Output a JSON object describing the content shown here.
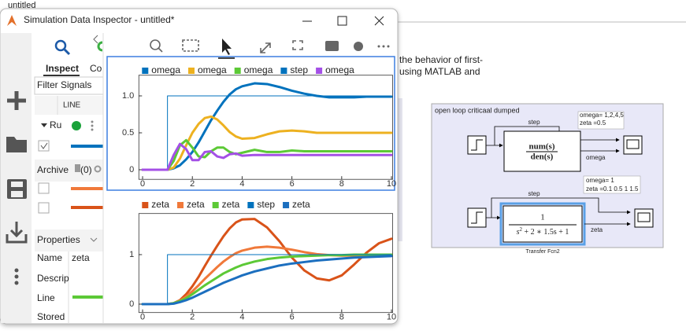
{
  "background": {
    "title": "untitled",
    "lines": [
      "the behavior of first-",
      "using MATLAB and"
    ],
    "model": {
      "area_label": "open loop criticaal dumped",
      "top": {
        "note": [
          "omega= 1,2,4,5",
          "zeta =0.5"
        ],
        "step_label": "step",
        "numerator": "num(s)",
        "denominator": "den(s)",
        "output_label": "omega"
      },
      "bottom": {
        "note": [
          "omega= 1",
          "zeta =0.1 0.5 1 1.5"
        ],
        "step_label": "step",
        "numerator": "1",
        "denominator": [
          "s",
          "2",
          " + 2 ∗ 1.5s + 1"
        ],
        "output_label": "zeta",
        "block_name": "Transfer Fcn2"
      }
    }
  },
  "window": {
    "title": "Simulation Data Inspector - untitled*",
    "tabs": [
      "Inspect",
      "Co"
    ],
    "filter_placeholder": "Filter Signals",
    "column": "LINE",
    "run": "Ru",
    "archive": "Archive",
    "archive_count": "(0)",
    "properties": "Properties",
    "property_names": [
      "Name",
      "Descrip",
      "Line",
      "Stored"
    ],
    "name_value": "zeta"
  },
  "chart_data": [
    {
      "type": "line",
      "x": [
        0,
        1,
        1.25,
        1.5,
        1.75,
        2,
        2.25,
        2.5,
        2.75,
        3,
        3.25,
        3.5,
        3.75,
        4,
        4.5,
        5,
        5.5,
        6,
        6.5,
        7,
        7.5,
        8,
        8.5,
        9,
        9.5,
        10
      ],
      "xlim": [
        -0.15,
        10.05
      ],
      "xticks": [
        0,
        2,
        4,
        6,
        8,
        10
      ],
      "ylim": [
        -0.13,
        1.28
      ],
      "yticks": [
        0,
        0.5,
        {
          "value": 1,
          "label": "1.0"
        }
      ],
      "series": [
        {
          "name": "omega",
          "color": "#0072bd",
          "width": 3,
          "values": [
            0,
            0,
            0.02,
            0.06,
            0.14,
            0.24,
            0.37,
            0.52,
            0.67,
            0.8,
            0.92,
            1.02,
            1.09,
            1.13,
            1.17,
            1.16,
            1.12,
            1.07,
            1.03,
            1.0,
            0.98,
            0.98,
            0.98,
            0.99,
            0.99,
            0.99
          ]
        },
        {
          "name": "omega",
          "color": "#edb120",
          "width": 3,
          "values": [
            0,
            0,
            0.03,
            0.15,
            0.33,
            0.5,
            0.62,
            0.7,
            0.72,
            0.68,
            0.6,
            0.51,
            0.45,
            0.42,
            0.43,
            0.48,
            0.52,
            0.53,
            0.52,
            0.5,
            0.5,
            0.5,
            0.5,
            0.5,
            0.5,
            0.5
          ]
        },
        {
          "name": "omega",
          "color": "#5cc936",
          "width": 3,
          "values": [
            0,
            0,
            0.12,
            0.33,
            0.4,
            0.3,
            0.18,
            0.17,
            0.25,
            0.3,
            0.3,
            0.24,
            0.21,
            0.23,
            0.27,
            0.24,
            0.24,
            0.26,
            0.25,
            0.25,
            0.25,
            0.25,
            0.25,
            0.25,
            0.25,
            0.25
          ]
        },
        {
          "name": "step",
          "color": "#0072bd",
          "width": 1,
          "x": [
            0,
            1,
            1,
            10
          ],
          "values": [
            0,
            0,
            1,
            1
          ]
        },
        {
          "name": "omega",
          "color": "#a450e6",
          "width": 3,
          "values": [
            0,
            0,
            0.2,
            0.35,
            0.28,
            0.13,
            0.13,
            0.24,
            0.25,
            0.18,
            0.16,
            0.21,
            0.22,
            0.19,
            0.2,
            0.2,
            0.2,
            0.2,
            0.2,
            0.2,
            0.2,
            0.2,
            0.2,
            0.2,
            0.2,
            0.2
          ]
        }
      ]
    },
    {
      "type": "line",
      "x": [
        0,
        1,
        1.25,
        1.5,
        1.75,
        2,
        2.25,
        2.5,
        2.75,
        3,
        3.25,
        3.5,
        3.75,
        4,
        4.5,
        5,
        5.5,
        6,
        6.5,
        7,
        7.5,
        8,
        8.5,
        9,
        9.5,
        10
      ],
      "xlim": [
        -0.15,
        10.05
      ],
      "xticks": [
        0,
        2,
        4,
        6,
        8,
        10
      ],
      "ylim": [
        -0.17,
        1.83
      ],
      "yticks": [
        0,
        1
      ],
      "series": [
        {
          "name": "zeta",
          "color": "#d95319",
          "width": 3,
          "values": [
            0,
            0,
            0.02,
            0.08,
            0.2,
            0.36,
            0.55,
            0.77,
            0.98,
            1.18,
            1.37,
            1.53,
            1.65,
            1.71,
            1.72,
            1.55,
            1.27,
            0.94,
            0.68,
            0.52,
            0.48,
            0.58,
            0.8,
            1.04,
            1.23,
            1.32
          ]
        },
        {
          "name": "zeta",
          "color": "#f0793a",
          "width": 3,
          "values": [
            0,
            0,
            0.02,
            0.07,
            0.15,
            0.26,
            0.38,
            0.51,
            0.63,
            0.75,
            0.86,
            0.95,
            1.03,
            1.08,
            1.14,
            1.16,
            1.14,
            1.1,
            1.05,
            1.01,
            0.99,
            0.98,
            0.98,
            0.99,
            0.99,
            1.0
          ]
        },
        {
          "name": "zeta",
          "color": "#5cc936",
          "width": 3,
          "values": [
            0,
            0,
            0.02,
            0.06,
            0.12,
            0.2,
            0.29,
            0.38,
            0.46,
            0.54,
            0.62,
            0.68,
            0.74,
            0.79,
            0.86,
            0.91,
            0.94,
            0.96,
            0.97,
            0.98,
            0.99,
            0.99,
            1.0,
            1.0,
            1.0,
            1.0
          ]
        },
        {
          "name": "step",
          "color": "#0072bd",
          "width": 1,
          "x": [
            0,
            1,
            1,
            10
          ],
          "values": [
            0,
            0,
            1,
            1
          ]
        },
        {
          "name": "zeta",
          "color": "#1c6fbf",
          "width": 3,
          "values": [
            0,
            0,
            0.01,
            0.04,
            0.08,
            0.13,
            0.19,
            0.25,
            0.31,
            0.37,
            0.43,
            0.48,
            0.53,
            0.58,
            0.66,
            0.72,
            0.78,
            0.82,
            0.85,
            0.88,
            0.9,
            0.92,
            0.94,
            0.95,
            0.96,
            0.97
          ]
        }
      ]
    }
  ]
}
